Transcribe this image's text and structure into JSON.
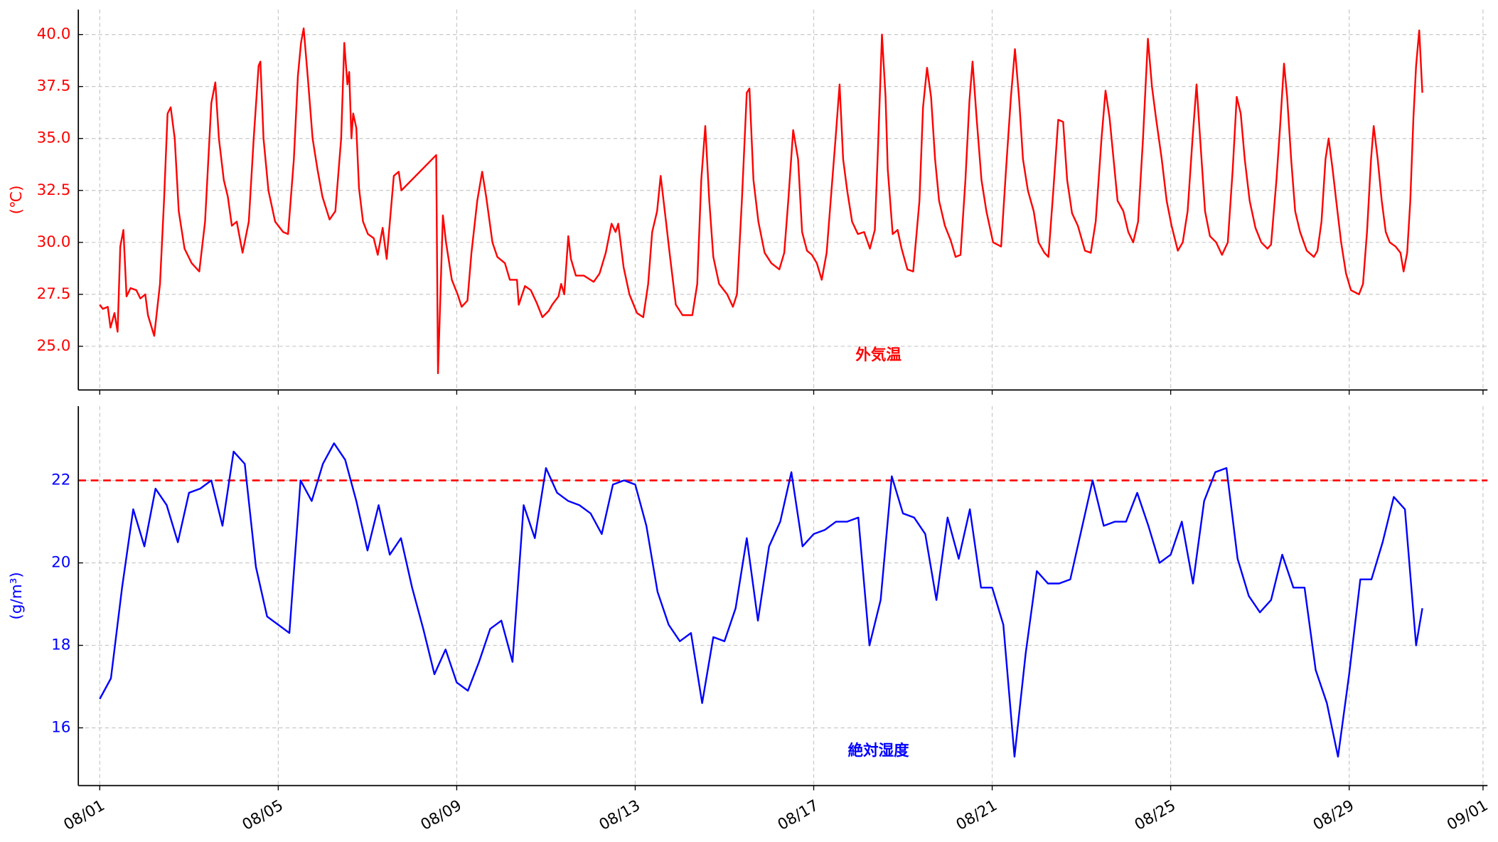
{
  "chart_data": [
    {
      "type": "line",
      "y_label": "(℃)",
      "annotation": "外気温",
      "xlim": [
        0.52,
        32.1
      ],
      "ylim": [
        22.9,
        41.2
      ],
      "yticks": [
        {
          "value": 25,
          "label": "25.0"
        },
        27.5,
        {
          "value": 30,
          "label": "30.0"
        },
        32.5,
        {
          "value": 35,
          "label": "35.0"
        },
        37.5,
        {
          "value": 40,
          "label": "40.0"
        }
      ],
      "grid": true,
      "x": [
        1.0,
        1.07,
        1.18,
        1.24,
        1.33,
        1.4,
        1.46,
        1.53,
        1.6,
        1.69,
        1.82,
        1.91,
        2.02,
        2.08,
        2.22,
        2.35,
        2.44,
        2.52,
        2.59,
        2.68,
        2.77,
        2.9,
        3.06,
        3.23,
        3.36,
        3.5,
        3.59,
        3.67,
        3.78,
        3.87,
        3.96,
        4.07,
        4.2,
        4.34,
        4.45,
        4.56,
        4.6,
        4.67,
        4.78,
        4.93,
        5.11,
        5.22,
        5.35,
        5.44,
        5.51,
        5.57,
        5.66,
        5.77,
        5.88,
        5.99,
        6.15,
        6.28,
        6.41,
        6.48,
        6.55,
        6.59,
        6.64,
        6.68,
        6.75,
        6.81,
        6.9,
        7.01,
        7.14,
        7.23,
        7.34,
        7.43,
        7.59,
        7.7,
        7.76,
        8.54,
        8.58,
        8.69,
        8.76,
        8.89,
        9.02,
        9.11,
        9.24,
        9.33,
        9.46,
        9.57,
        9.66,
        9.8,
        9.91,
        10.08,
        10.19,
        10.35,
        10.39,
        10.53,
        10.66,
        10.79,
        10.92,
        11.06,
        11.14,
        11.28,
        11.34,
        11.41,
        11.5,
        11.56,
        11.67,
        11.85,
        12.07,
        12.2,
        12.34,
        12.47,
        12.56,
        12.62,
        12.74,
        12.87,
        13.04,
        13.18,
        13.29,
        13.38,
        13.49,
        13.57,
        13.69,
        13.77,
        13.91,
        14.06,
        14.28,
        14.39,
        14.48,
        14.57,
        14.66,
        14.75,
        14.88,
        15.06,
        15.19,
        15.28,
        15.39,
        15.5,
        15.56,
        15.65,
        15.76,
        15.9,
        16.05,
        16.23,
        16.34,
        16.43,
        16.54,
        16.65,
        16.74,
        16.85,
        16.96,
        17.07,
        17.18,
        17.29,
        17.38,
        17.49,
        17.58,
        17.66,
        17.75,
        17.86,
        17.99,
        18.13,
        18.26,
        18.37,
        18.44,
        18.53,
        18.61,
        18.66,
        18.77,
        18.88,
        18.97,
        19.1,
        19.23,
        19.37,
        19.45,
        19.54,
        19.63,
        19.72,
        19.81,
        19.94,
        20.07,
        20.18,
        20.29,
        20.4,
        20.49,
        20.56,
        20.65,
        20.76,
        20.87,
        21.02,
        21.2,
        21.31,
        21.42,
        21.51,
        21.6,
        21.69,
        21.8,
        21.93,
        22.04,
        22.17,
        22.26,
        22.37,
        22.48,
        22.59,
        22.68,
        22.79,
        22.92,
        23.08,
        23.21,
        23.32,
        23.45,
        23.54,
        23.63,
        23.72,
        23.81,
        23.94,
        24.05,
        24.16,
        24.27,
        24.38,
        24.49,
        24.58,
        24.67,
        24.8,
        24.91,
        25.02,
        25.16,
        25.27,
        25.38,
        25.49,
        25.58,
        25.66,
        25.77,
        25.88,
        26.02,
        26.15,
        26.28,
        26.39,
        26.48,
        26.57,
        26.66,
        26.77,
        26.9,
        27.03,
        27.17,
        27.25,
        27.37,
        27.45,
        27.54,
        27.61,
        27.7,
        27.79,
        27.9,
        28.05,
        28.21,
        28.29,
        28.38,
        28.47,
        28.54,
        28.63,
        28.71,
        28.82,
        28.93,
        29.04,
        29.13,
        29.22,
        29.31,
        29.4,
        29.49,
        29.55,
        29.64,
        29.73,
        29.82,
        29.91,
        30.04,
        30.15,
        30.22,
        30.3,
        30.37,
        30.44,
        30.5,
        30.57,
        30.64
      ],
      "series": [
        {
          "color": "#ff0000",
          "values": [
            27.0,
            26.8,
            26.9,
            25.9,
            26.6,
            25.7,
            29.8,
            30.6,
            27.4,
            27.8,
            27.7,
            27.3,
            27.5,
            26.5,
            25.5,
            28,
            32,
            36.2,
            36.5,
            35,
            31.5,
            29.7,
            29,
            28.6,
            31,
            36.7,
            37.7,
            35,
            33,
            32.2,
            30.8,
            31,
            29.5,
            31,
            35,
            38.5,
            38.7,
            35,
            32.5,
            31,
            30.5,
            30.4,
            34,
            38,
            39.6,
            40.3,
            38,
            35,
            33.5,
            32.2,
            31.1,
            31.5,
            35,
            39.6,
            37.6,
            38.2,
            35,
            36.2,
            35.5,
            32.6,
            31,
            30.4,
            30.2,
            29.4,
            30.7,
            29.2,
            33.2,
            33.4,
            32.5,
            34.2,
            23.7,
            31.3,
            30,
            28.2,
            27.5,
            26.9,
            27.2,
            29.5,
            32,
            33.4,
            32.2,
            30,
            29.3,
            29,
            28.2,
            28.2,
            27,
            27.9,
            27.7,
            27.1,
            26.4,
            26.7,
            27,
            27.4,
            28,
            27.5,
            30.3,
            29.2,
            28.4,
            28.4,
            28.1,
            28.5,
            29.5,
            30.9,
            30.5,
            30.9,
            28.8,
            27.5,
            26.6,
            26.4,
            28,
            30.5,
            31.5,
            33.2,
            31,
            29.5,
            27,
            26.5,
            26.5,
            28,
            33,
            35.6,
            32,
            29.3,
            28,
            27.5,
            26.9,
            27.5,
            32,
            37.2,
            37.4,
            33,
            31,
            29.5,
            29,
            28.7,
            29.5,
            32,
            35.4,
            34,
            30.5,
            29.6,
            29.4,
            29,
            28.2,
            29.5,
            32,
            35,
            37.6,
            34,
            32.5,
            31,
            30.4,
            30.5,
            29.7,
            30.6,
            34.5,
            40,
            37,
            33.5,
            30.4,
            30.6,
            29.7,
            28.7,
            28.6,
            32,
            36.5,
            38.4,
            37,
            34,
            32,
            30.8,
            30.1,
            29.3,
            29.4,
            33,
            36.8,
            38.7,
            36,
            33,
            31.5,
            30,
            29.8,
            33.5,
            37,
            39.3,
            37,
            34,
            32.5,
            31.5,
            30,
            29.5,
            29.3,
            32.5,
            35.9,
            35.8,
            33,
            31.4,
            30.8,
            29.6,
            29.5,
            31,
            35,
            37.3,
            36,
            34,
            32,
            31.5,
            30.5,
            30,
            31,
            35,
            39.8,
            37.5,
            36,
            34,
            32,
            30.8,
            29.6,
            30,
            31.5,
            35,
            37.6,
            35,
            31.5,
            30.3,
            30,
            29.4,
            30,
            33.5,
            37,
            36.2,
            34,
            32,
            30.7,
            30,
            29.7,
            29.9,
            33,
            35.5,
            38.6,
            37,
            34,
            31.5,
            30.5,
            29.6,
            29.3,
            29.6,
            31,
            34,
            35,
            33.5,
            32,
            30,
            28.5,
            27.7,
            27.6,
            27.5,
            28,
            30.5,
            34,
            35.6,
            34,
            32,
            30.5,
            30,
            29.8,
            29.5,
            28.6,
            29.5,
            32,
            36,
            38.5,
            40.2,
            37.2
          ]
        }
      ]
    },
    {
      "type": "line",
      "y_label": "(g/m³)",
      "annotation": "絶対湿度",
      "xlim": [
        0.52,
        32.1
      ],
      "ylim": [
        14.6,
        23.8
      ],
      "xticks": [
        {
          "value": 1,
          "label": "08/01"
        },
        {
          "value": 5,
          "label": "08/05"
        },
        {
          "value": 9,
          "label": "08/09"
        },
        {
          "value": 13,
          "label": "08/13"
        },
        {
          "value": 17,
          "label": "08/17"
        },
        {
          "value": 21,
          "label": "08/21"
        },
        {
          "value": 25,
          "label": "08/25"
        },
        {
          "value": 29,
          "label": "08/29"
        },
        {
          "value": 32,
          "label": "09/01"
        }
      ],
      "yticks": [
        16,
        18,
        20,
        22
      ],
      "grid": true,
      "hline": {
        "value": 22,
        "color": "#ff0000",
        "style": "dashed"
      },
      "x": [
        1,
        1.25,
        1.5,
        1.75,
        2,
        2.25,
        2.5,
        2.75,
        3,
        3.25,
        3.5,
        3.75,
        4,
        4.25,
        4.5,
        4.75,
        5,
        5.25,
        5.5,
        5.75,
        6,
        6.25,
        6.5,
        6.75,
        7,
        7.25,
        7.5,
        7.75,
        8,
        8.25,
        8.5,
        8.75,
        9,
        9.25,
        9.5,
        9.75,
        10,
        10.25,
        10.5,
        10.75,
        11,
        11.25,
        11.5,
        11.75,
        12,
        12.25,
        12.5,
        12.75,
        13,
        13.25,
        13.5,
        13.75,
        14,
        14.25,
        14.5,
        14.75,
        15,
        15.25,
        15.5,
        15.75,
        16,
        16.25,
        16.5,
        16.75,
        17,
        17.25,
        17.5,
        17.75,
        18,
        18.25,
        18.5,
        18.75,
        19,
        19.25,
        19.5,
        19.75,
        20,
        20.25,
        20.5,
        20.75,
        21,
        21.25,
        21.5,
        21.75,
        22,
        22.25,
        22.5,
        22.75,
        23,
        23.25,
        23.5,
        23.75,
        24,
        24.25,
        24.5,
        24.75,
        25,
        25.25,
        25.5,
        25.75,
        26,
        26.25,
        26.5,
        26.75,
        27,
        27.25,
        27.5,
        27.75,
        28,
        28.25,
        28.5,
        28.75,
        29,
        29.25,
        29.5,
        29.75,
        30,
        30.25,
        30.5,
        30.64
      ],
      "series": [
        {
          "color": "#0000ff",
          "values": [
            16.7,
            17.2,
            19.4,
            21.3,
            20.4,
            21.8,
            21.4,
            20.5,
            21.7,
            21.8,
            22.0,
            20.9,
            22.7,
            22.4,
            19.9,
            18.7,
            18.5,
            18.3,
            22.0,
            21.5,
            22.4,
            22.9,
            22.5,
            21.5,
            20.3,
            21.4,
            20.2,
            20.6,
            19.4,
            18.4,
            17.3,
            17.9,
            17.1,
            16.9,
            17.6,
            18.4,
            18.6,
            17.6,
            21.4,
            20.6,
            22.3,
            21.7,
            21.5,
            21.4,
            21.2,
            20.7,
            21.9,
            22.0,
            21.9,
            20.9,
            19.3,
            18.5,
            18.1,
            18.3,
            16.6,
            18.2,
            18.1,
            18.9,
            20.6,
            18.6,
            20.4,
            21.0,
            22.2,
            20.4,
            20.7,
            20.8,
            21.0,
            21.0,
            21.1,
            18.0,
            19.1,
            22.1,
            21.2,
            21.1,
            20.7,
            19.1,
            21.1,
            20.1,
            21.3,
            19.4,
            19.4,
            18.5,
            15.3,
            17.8,
            19.8,
            19.5,
            19.5,
            19.6,
            20.8,
            22.0,
            20.9,
            21.0,
            21.0,
            21.7,
            20.9,
            20.0,
            20.2,
            21.0,
            19.5,
            21.5,
            22.2,
            22.3,
            20.1,
            19.2,
            18.8,
            19.1,
            20.2,
            19.4,
            19.4,
            17.4,
            16.6,
            15.3,
            17.3,
            19.6,
            19.6,
            20.5,
            21.6,
            21.3,
            18.0,
            18.9
          ]
        }
      ]
    }
  ]
}
